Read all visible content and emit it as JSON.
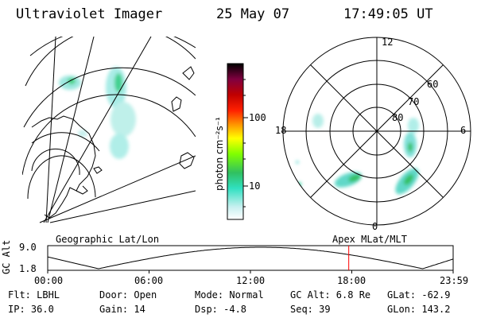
{
  "header": {
    "instrument": "Ultraviolet Imager",
    "date": "25 May 07",
    "time": "17:49:05 UT"
  },
  "colorbar": {
    "unit_label": "photon cm⁻²s⁻¹",
    "tick_100": "100",
    "tick_10": "10",
    "colors": [
      "#ffffff",
      "#c8f0f0",
      "#30e0c0",
      "#30c060",
      "#80ff00",
      "#ffff00",
      "#ffa000",
      "#ff2000",
      "#c00000",
      "#800040",
      "#000000"
    ]
  },
  "polar_plot": {
    "mlt_labels": {
      "top": "12",
      "left": "18",
      "right": "6",
      "bottom": "0"
    },
    "lat_labels": [
      "60",
      "70",
      "80"
    ]
  },
  "projection_labels": {
    "left": "Geographic Lat/Lon",
    "right": "Apex MLat/MLT"
  },
  "altitude_track": {
    "axis_label": "GC Alt",
    "y_max_label": "9.0",
    "y_min_label": "1.8",
    "x_labels": [
      "00:00",
      "06:00",
      "12:00",
      "18:00",
      "23:59"
    ],
    "current_marker_hour": 17.82,
    "marker_color": "#ff0000"
  },
  "info": {
    "flt": "Flt: LBHL",
    "door": "Door: Open",
    "mode": "Mode: Normal",
    "gc_alt": "GC Alt: 6.8 Re",
    "glat": "GLat: -62.9",
    "ip": "IP: 36.0",
    "gain": "Gain: 14",
    "dsp": "Dsp:   -4.8",
    "seq": "Seq: 39",
    "glon": "GLon: 143.2"
  }
}
